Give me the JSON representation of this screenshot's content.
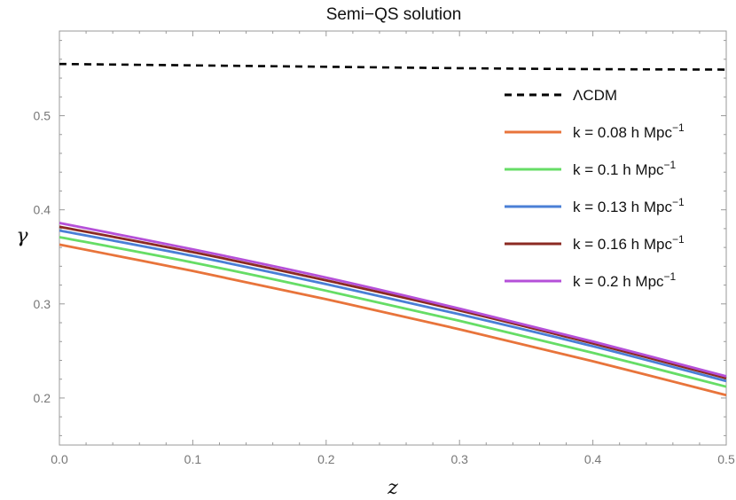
{
  "chart_data": {
    "type": "line",
    "title": "Semi−QS solution",
    "xlabel": "z",
    "ylabel": "γ",
    "xlim": [
      0,
      0.5
    ],
    "ylim": [
      0.15,
      0.59
    ],
    "x_ticks": [
      0.0,
      0.1,
      0.2,
      0.3,
      0.4,
      0.5
    ],
    "x_tick_labels": [
      "0.0",
      "0.1",
      "0.2",
      "0.3",
      "0.4",
      "0.5"
    ],
    "y_ticks": [
      0.2,
      0.3,
      0.4,
      0.5
    ],
    "y_tick_labels": [
      "0.2",
      "0.3",
      "0.4",
      "0.5"
    ],
    "grid": false,
    "legend_position": "right",
    "series": [
      {
        "name": "ΛCDM",
        "color": "#000000",
        "dashed": true,
        "x": [
          0.0,
          0.1,
          0.2,
          0.3,
          0.4,
          0.5
        ],
        "y": [
          0.555,
          0.5535,
          0.552,
          0.5505,
          0.5495,
          0.549
        ]
      },
      {
        "name": "k = 0.08 h Mpc",
        "sup": "−1",
        "color": "#E8743B",
        "dashed": false,
        "x": [
          0.0,
          0.1,
          0.2,
          0.3,
          0.4,
          0.5
        ],
        "y": [
          0.363,
          0.335,
          0.305,
          0.273,
          0.239,
          0.203
        ]
      },
      {
        "name": "k = 0.1 h Mpc",
        "sup": "−1",
        "color": "#66DD66",
        "dashed": false,
        "x": [
          0.0,
          0.1,
          0.2,
          0.3,
          0.4,
          0.5
        ],
        "y": [
          0.371,
          0.344,
          0.314,
          0.282,
          0.248,
          0.212
        ]
      },
      {
        "name": "k = 0.13 h Mpc",
        "sup": "−1",
        "color": "#4A7FD6",
        "dashed": false,
        "x": [
          0.0,
          0.1,
          0.2,
          0.3,
          0.4,
          0.5
        ],
        "y": [
          0.378,
          0.351,
          0.321,
          0.289,
          0.255,
          0.218
        ]
      },
      {
        "name": "k = 0.16 h Mpc",
        "sup": "−1",
        "color": "#8B2A22",
        "dashed": false,
        "x": [
          0.0,
          0.1,
          0.2,
          0.3,
          0.4,
          0.5
        ],
        "y": [
          0.382,
          0.355,
          0.325,
          0.293,
          0.258,
          0.221
        ]
      },
      {
        "name": "k = 0.2 h Mpc",
        "sup": "−1",
        "color": "#B550D8",
        "dashed": false,
        "x": [
          0.0,
          0.1,
          0.2,
          0.3,
          0.4,
          0.5
        ],
        "y": [
          0.386,
          0.358,
          0.328,
          0.295,
          0.26,
          0.223
        ]
      }
    ]
  }
}
